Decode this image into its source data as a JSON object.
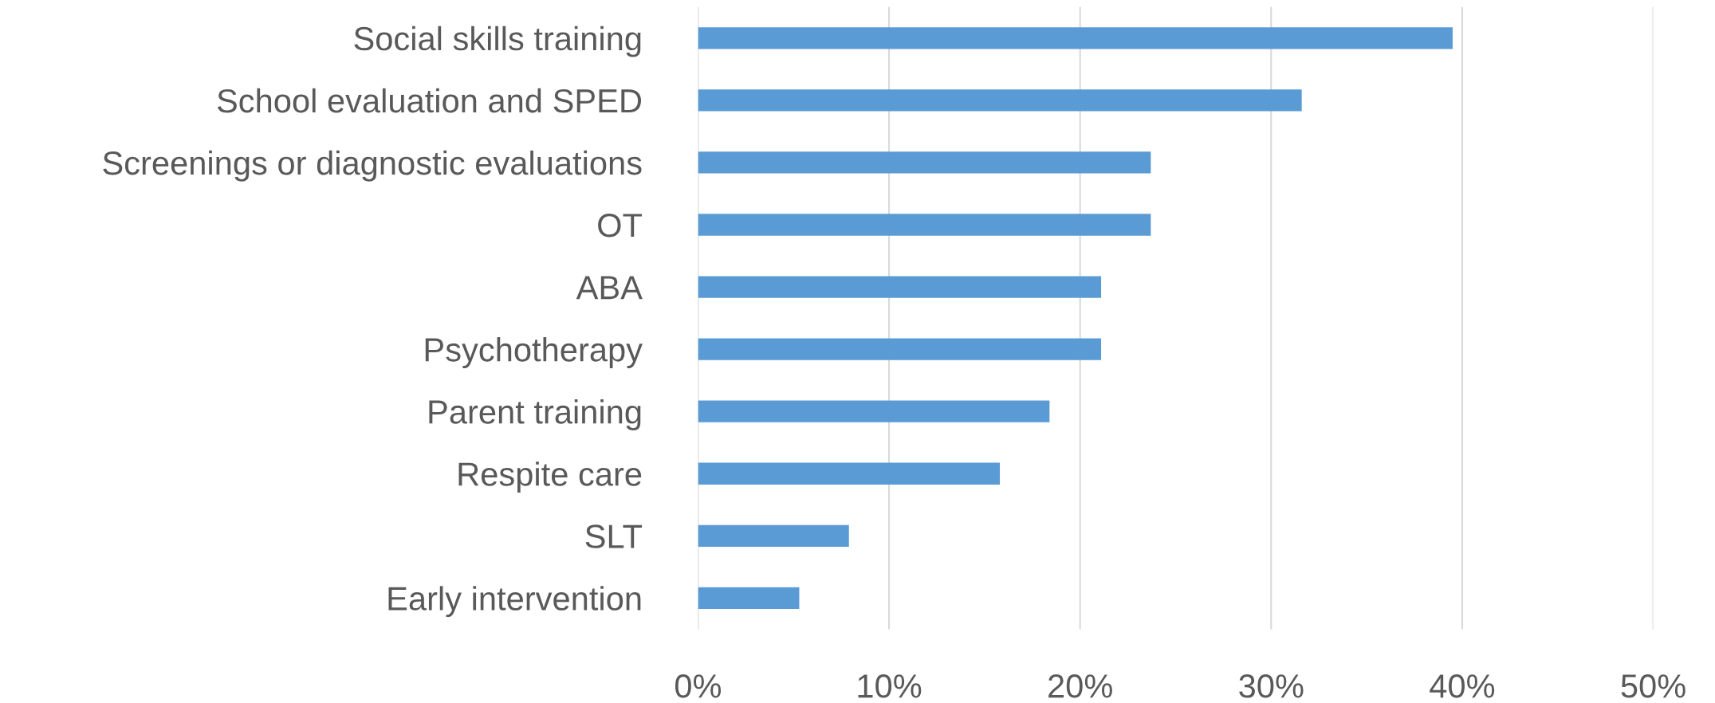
{
  "chart_data": {
    "type": "bar",
    "orientation": "horizontal",
    "categories": [
      "Social skills training",
      "School evaluation and SPED",
      "Screenings or diagnostic evaluations",
      "OT",
      "ABA",
      "Psychotherapy",
      "Parent training",
      "Respite care",
      "SLT",
      "Early intervention"
    ],
    "values": [
      39.5,
      31.6,
      23.7,
      23.7,
      21.1,
      21.1,
      18.4,
      15.8,
      7.9,
      5.3
    ],
    "color": "#5b9bd5",
    "xlim": [
      0,
      50
    ],
    "xticks": [
      {
        "value": 0,
        "label": "0%"
      },
      {
        "value": 10,
        "label": "10%"
      },
      {
        "value": 20,
        "label": "20%"
      },
      {
        "value": 30,
        "label": "30%"
      },
      {
        "value": 40,
        "label": "40%"
      },
      {
        "value": 50,
        "label": "50%"
      }
    ],
    "grid": "x",
    "legend": false
  }
}
